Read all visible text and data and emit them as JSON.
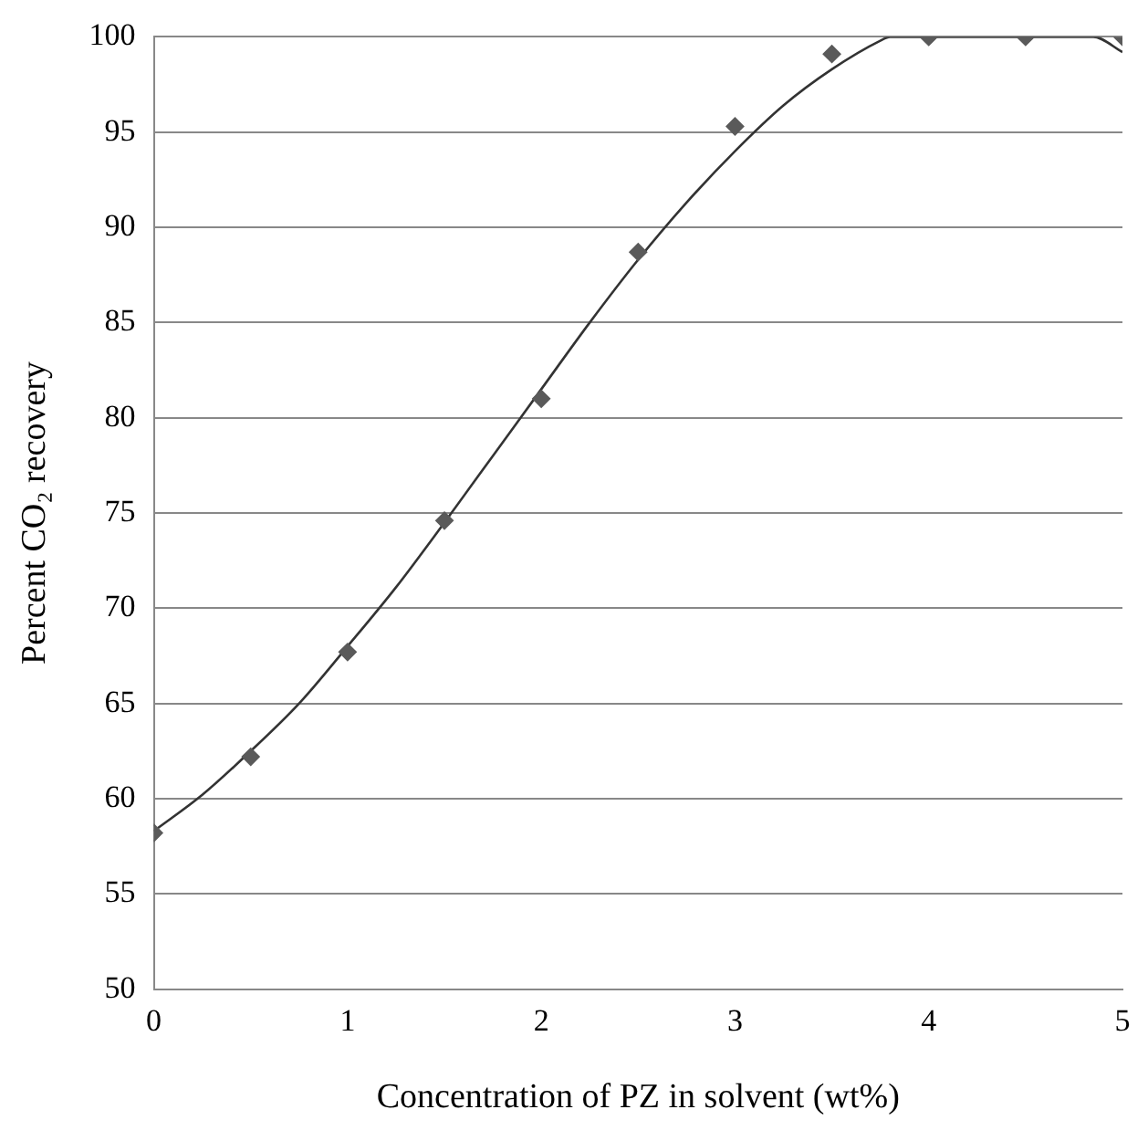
{
  "chart_data": {
    "type": "scatter",
    "xlabel": "Concentration of PZ in solvent (wt%)",
    "ylabel": "Percent CO₂ recovery",
    "xlim": [
      0,
      5
    ],
    "xticks": [
      0,
      1,
      2,
      3,
      4,
      5
    ],
    "ylim": [
      50,
      100
    ],
    "yticks": [
      50,
      55,
      60,
      65,
      70,
      75,
      80,
      85,
      90,
      95,
      100
    ],
    "grid": "y",
    "marker": "diamond",
    "series": [
      {
        "color": "#5a5a5a",
        "x": [
          0,
          0.5,
          1,
          1.5,
          2,
          2.5,
          3,
          3.5,
          4,
          4.5,
          5
        ],
        "values": [
          58.2,
          62.2,
          67.7,
          74.6,
          81,
          88.7,
          95.3,
          99.1,
          100,
          100,
          100
        ]
      },
      {
        "type": "line",
        "color": "#333333",
        "marker": "none",
        "x": [
          0,
          0.25,
          0.5,
          0.75,
          1,
          1.25,
          1.5,
          1.75,
          2,
          2.25,
          2.5,
          2.75,
          3,
          3.25,
          3.5,
          3.75,
          3.8,
          4.85,
          5
        ],
        "values": [
          58.3,
          60.2,
          62.5,
          65,
          68,
          71.1,
          74.5,
          78,
          81.5,
          85,
          88.3,
          91.3,
          94,
          96.4,
          98.3,
          99.8,
          100,
          100,
          99.2
        ]
      }
    ]
  }
}
